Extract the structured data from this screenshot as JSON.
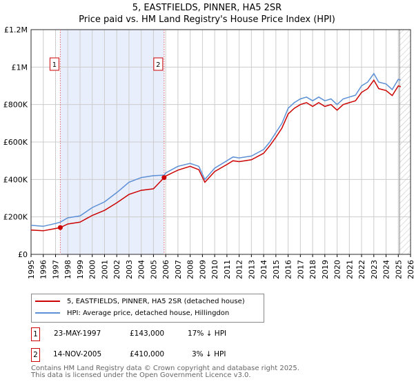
{
  "title": "5, EASTFIELDS, PINNER, HA5 2SR",
  "subtitle": "Price paid vs. HM Land Registry's House Price Index (HPI)",
  "chart_data": {
    "type": "line",
    "title": "5, EASTFIELDS, PINNER, HA5 2SR",
    "xlim": [
      1995,
      2026
    ],
    "ylim": [
      0,
      1200000
    ],
    "x_ticks": [
      "1995",
      "1996",
      "1997",
      "1998",
      "1999",
      "2000",
      "2001",
      "2002",
      "2003",
      "2004",
      "2005",
      "2006",
      "2007",
      "2008",
      "2009",
      "2010",
      "2011",
      "2012",
      "2013",
      "2014",
      "2015",
      "2016",
      "2017",
      "2018",
      "2019",
      "2020",
      "2021",
      "2022",
      "2023",
      "2024",
      "2025",
      "2026"
    ],
    "y_ticks": [
      {
        "v": 0,
        "label": "£0"
      },
      {
        "v": 200000,
        "label": "£200K"
      },
      {
        "v": 400000,
        "label": "£400K"
      },
      {
        "v": 600000,
        "label": "£600K"
      },
      {
        "v": 800000,
        "label": "£800K"
      },
      {
        "v": 1000000,
        "label": "£1M"
      },
      {
        "v": 1200000,
        "label": "£1.2M"
      }
    ],
    "grid": true,
    "shaded_range": [
      1997.39,
      2005.87
    ],
    "hatched_from": 2025.1,
    "series": [
      {
        "name": "5, EASTFIELDS, PINNER, HA5 2SR (detached house)",
        "color": "#cc0000",
        "x": [
          1995,
          1996,
          1997,
          1997.39,
          1998,
          1999,
          2000,
          2001,
          2002,
          2003,
          2004,
          2005,
          2005.87,
          2006,
          2007,
          2008,
          2008.7,
          2009.2,
          2010,
          2011,
          2011.5,
          2012,
          2013,
          2014,
          2014.5,
          2015,
          2015.5,
          2016,
          2016.5,
          2017,
          2017.5,
          2018,
          2018.5,
          2019,
          2019.5,
          2020,
          2020.5,
          2021,
          2021.5,
          2022,
          2022.5,
          2023,
          2023.4,
          2024,
          2024.5,
          2025,
          2025.2
        ],
        "y": [
          130000,
          126000,
          138000,
          143000,
          162000,
          172000,
          208000,
          235000,
          275000,
          320000,
          342000,
          350000,
          410000,
          418000,
          450000,
          470000,
          452000,
          385000,
          442000,
          480000,
          500000,
          495000,
          505000,
          540000,
          580000,
          625000,
          675000,
          750000,
          780000,
          800000,
          810000,
          790000,
          810000,
          790000,
          800000,
          770000,
          800000,
          810000,
          820000,
          865000,
          885000,
          930000,
          885000,
          875000,
          848000,
          900000,
          895000
        ]
      },
      {
        "name": "HPI: Average price, detached house, Hillingdon",
        "color": "#5b8fd6",
        "x": [
          1995,
          1996,
          1997,
          1997.39,
          1998,
          1999,
          2000,
          2001,
          2002,
          2003,
          2004,
          2005,
          2005.87,
          2006,
          2007,
          2008,
          2008.7,
          2009.2,
          2010,
          2011,
          2011.5,
          2012,
          2013,
          2014,
          2014.5,
          2015,
          2015.5,
          2016,
          2016.5,
          2017,
          2017.5,
          2018,
          2018.5,
          2019,
          2019.5,
          2020,
          2020.5,
          2021,
          2021.5,
          2022,
          2022.5,
          2023,
          2023.4,
          2024,
          2024.5,
          2025,
          2025.2
        ],
        "y": [
          155000,
          150000,
          165000,
          172000,
          195000,
          205000,
          250000,
          280000,
          330000,
          385000,
          410000,
          420000,
          423000,
          435000,
          470000,
          486000,
          470000,
          400000,
          460000,
          500000,
          520000,
          515000,
          525000,
          560000,
          600000,
          650000,
          700000,
          780000,
          810000,
          830000,
          840000,
          820000,
          840000,
          820000,
          830000,
          800000,
          830000,
          840000,
          850000,
          900000,
          920000,
          965000,
          920000,
          910000,
          880000,
          935000,
          930000
        ]
      }
    ],
    "annotations": [
      {
        "label": "1",
        "x": 1997.39,
        "y": 143000
      },
      {
        "label": "2",
        "x": 2005.87,
        "y": 410000
      }
    ]
  },
  "legend": {
    "property": "5, EASTFIELDS, PINNER, HA5 2SR (detached house)",
    "hpi": "HPI: Average price, detached house, Hillingdon"
  },
  "sales": [
    {
      "num": "1",
      "date": "23-MAY-1997",
      "price": "£143,000",
      "hpi": "17% ↓ HPI"
    },
    {
      "num": "2",
      "date": "14-NOV-2005",
      "price": "£410,000",
      "hpi": "3% ↓ HPI"
    }
  ],
  "footer": {
    "line1": "Contains HM Land Registry data © Crown copyright and database right 2025.",
    "line2": "This data is licensed under the Open Government Licence v3.0."
  }
}
